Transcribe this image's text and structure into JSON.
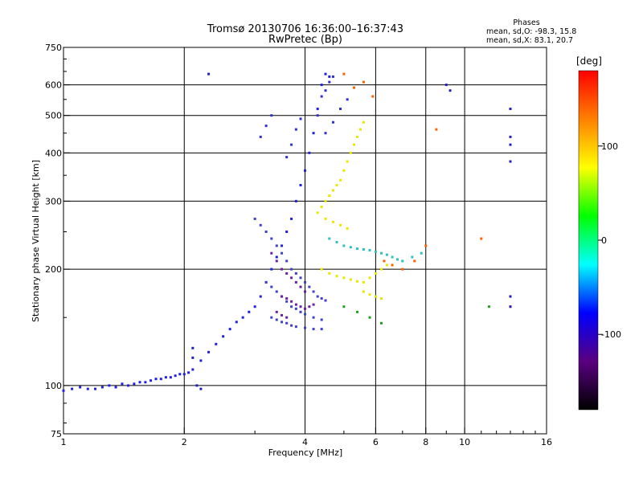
{
  "chart_data": {
    "type": "scatter",
    "title": "Tromsø 20130706 16:36:00–16:37:43",
    "subtitle": "RwPretec (Bp)",
    "xlabel": "Frequency [MHz]",
    "ylabel": "Stationary phase Virtual Height [km]",
    "x_scale": "log",
    "y_scale": "log",
    "xlim": [
      1,
      16
    ],
    "ylim": [
      75,
      750
    ],
    "x_ticks": [
      1,
      2,
      4,
      6,
      8,
      10,
      16
    ],
    "y_ticks": [
      75,
      100,
      200,
      300,
      400,
      500,
      600,
      750
    ],
    "x_grid": [
      2,
      4,
      6,
      8,
      10
    ],
    "y_grid": [
      100,
      200,
      300,
      400,
      500,
      600
    ],
    "grid": true,
    "phase_stats": {
      "heading": "Phases",
      "line_o": "mean, sd,O: -98.3, 15.8",
      "line_x": "mean, sd,X:  83.1, 20.7"
    },
    "colorbar": {
      "unit": "[deg]",
      "range": [
        -180,
        180
      ],
      "ticks": [
        100,
        0,
        -100
      ],
      "tick_labels": [
        "100",
        "0",
        "-100"
      ],
      "colors": [
        "#000000",
        "#5a0080",
        "#0000ff",
        "#00ffff",
        "#00ff00",
        "#ffff00",
        "#ff8000",
        "#ff0000"
      ]
    },
    "series": [
      {
        "color": "#2020e0",
        "note_points": [
          [
            1.0,
            97
          ],
          [
            1.05,
            98
          ],
          [
            1.1,
            99
          ],
          [
            1.15,
            98
          ],
          [
            1.2,
            98
          ],
          [
            1.25,
            99
          ],
          [
            1.3,
            100
          ],
          [
            1.35,
            99
          ],
          [
            1.4,
            101
          ],
          [
            1.45,
            100
          ],
          [
            1.5,
            101
          ],
          [
            1.55,
            102
          ],
          [
            1.6,
            102
          ],
          [
            1.65,
            103
          ],
          [
            1.7,
            104
          ],
          [
            1.75,
            104
          ],
          [
            1.8,
            105
          ],
          [
            1.85,
            105
          ],
          [
            1.9,
            106
          ],
          [
            1.95,
            107
          ],
          [
            2.0,
            107
          ],
          [
            2.05,
            108
          ],
          [
            2.1,
            110
          ],
          [
            2.2,
            116
          ],
          [
            2.3,
            122
          ],
          [
            2.4,
            128
          ],
          [
            2.5,
            134
          ],
          [
            2.6,
            140
          ],
          [
            2.7,
            146
          ],
          [
            2.8,
            150
          ],
          [
            2.9,
            155
          ],
          [
            3.0,
            160
          ],
          [
            3.1,
            170
          ],
          [
            3.2,
            185
          ],
          [
            3.3,
            200
          ],
          [
            3.4,
            215
          ],
          [
            3.5,
            230
          ],
          [
            3.6,
            250
          ],
          [
            3.7,
            270
          ],
          [
            3.8,
            300
          ],
          [
            3.9,
            330
          ],
          [
            4.0,
            360
          ],
          [
            4.1,
            400
          ],
          [
            4.2,
            450
          ],
          [
            4.3,
            520
          ],
          [
            4.4,
            600
          ],
          [
            4.5,
            640
          ],
          [
            4.6,
            630
          ]
        ]
      },
      {
        "color": "#3030d0",
        "note_points": [
          [
            3.6,
            390
          ],
          [
            3.7,
            420
          ],
          [
            3.8,
            460
          ],
          [
            3.9,
            490
          ],
          [
            3.1,
            440
          ],
          [
            3.2,
            470
          ],
          [
            3.3,
            500
          ],
          [
            4.4,
            560
          ],
          [
            4.5,
            580
          ],
          [
            4.6,
            610
          ],
          [
            4.7,
            630
          ],
          [
            4.3,
            500
          ],
          [
            4.5,
            450
          ],
          [
            4.7,
            480
          ],
          [
            4.9,
            520
          ],
          [
            5.1,
            550
          ]
        ]
      },
      {
        "color": "#4040c8",
        "note_points": [
          [
            3.0,
            270
          ],
          [
            3.1,
            260
          ],
          [
            3.2,
            250
          ],
          [
            3.3,
            240
          ],
          [
            3.4,
            230
          ],
          [
            3.5,
            220
          ],
          [
            3.6,
            210
          ],
          [
            3.7,
            200
          ],
          [
            3.8,
            195
          ],
          [
            3.9,
            190
          ],
          [
            4.0,
            185
          ],
          [
            4.1,
            180
          ],
          [
            4.2,
            175
          ],
          [
            4.3,
            170
          ],
          [
            4.4,
            168
          ],
          [
            4.5,
            166
          ],
          [
            3.2,
            185
          ],
          [
            3.3,
            180
          ],
          [
            3.4,
            175
          ],
          [
            3.5,
            170
          ],
          [
            3.6,
            165
          ],
          [
            3.7,
            160
          ],
          [
            3.8,
            158
          ],
          [
            3.9,
            155
          ],
          [
            4.0,
            153
          ],
          [
            4.2,
            150
          ],
          [
            4.4,
            148
          ],
          [
            3.3,
            150
          ],
          [
            3.4,
            148
          ],
          [
            3.5,
            146
          ],
          [
            3.6,
            145
          ],
          [
            3.7,
            143
          ],
          [
            3.8,
            142
          ],
          [
            4.0,
            141
          ],
          [
            4.2,
            140
          ],
          [
            4.4,
            140
          ]
        ]
      },
      {
        "color": "#6a20a0",
        "note_points": [
          [
            3.3,
            220
          ],
          [
            3.4,
            210
          ],
          [
            3.5,
            200
          ],
          [
            3.6,
            195
          ],
          [
            3.7,
            190
          ],
          [
            3.8,
            185
          ],
          [
            3.9,
            180
          ],
          [
            4.0,
            175
          ],
          [
            3.5,
            170
          ],
          [
            3.6,
            168
          ],
          [
            3.7,
            165
          ],
          [
            3.8,
            162
          ],
          [
            3.9,
            160
          ],
          [
            4.0,
            158
          ],
          [
            4.1,
            160
          ],
          [
            4.2,
            162
          ],
          [
            3.4,
            155
          ],
          [
            3.5,
            152
          ],
          [
            3.6,
            150
          ]
        ]
      },
      {
        "color": "#e8e800",
        "note_points": [
          [
            4.3,
            280
          ],
          [
            4.4,
            290
          ],
          [
            4.5,
            300
          ],
          [
            4.6,
            310
          ],
          [
            4.7,
            320
          ],
          [
            4.8,
            330
          ],
          [
            4.9,
            340
          ],
          [
            5.0,
            360
          ],
          [
            5.1,
            380
          ],
          [
            5.2,
            400
          ],
          [
            5.3,
            420
          ],
          [
            5.4,
            440
          ],
          [
            5.5,
            460
          ],
          [
            5.6,
            480
          ],
          [
            4.5,
            270
          ],
          [
            4.7,
            265
          ],
          [
            4.9,
            260
          ],
          [
            5.1,
            255
          ],
          [
            4.4,
            200
          ],
          [
            4.6,
            195
          ],
          [
            4.8,
            192
          ],
          [
            5.0,
            190
          ],
          [
            5.2,
            188
          ],
          [
            5.4,
            186
          ],
          [
            5.6,
            185
          ],
          [
            5.8,
            190
          ],
          [
            6.0,
            195
          ],
          [
            6.2,
            200
          ],
          [
            6.4,
            205
          ],
          [
            5.6,
            175
          ],
          [
            5.8,
            172
          ],
          [
            6.0,
            170
          ],
          [
            6.2,
            168
          ]
        ]
      },
      {
        "color": "#30c0c0",
        "note_points": [
          [
            4.6,
            240
          ],
          [
            4.8,
            235
          ],
          [
            5.0,
            230
          ],
          [
            5.2,
            228
          ],
          [
            5.4,
            226
          ],
          [
            5.6,
            225
          ],
          [
            5.8,
            224
          ],
          [
            6.0,
            222
          ],
          [
            6.2,
            220
          ],
          [
            6.4,
            218
          ],
          [
            6.6,
            215
          ],
          [
            6.8,
            212
          ],
          [
            7.0,
            210
          ],
          [
            7.4,
            215
          ],
          [
            7.8,
            220
          ]
        ]
      },
      {
        "color": "#ff6000",
        "note_points": [
          [
            5.0,
            640
          ],
          [
            5.3,
            590
          ],
          [
            5.6,
            610
          ],
          [
            5.9,
            560
          ],
          [
            6.3,
            210
          ],
          [
            6.6,
            205
          ],
          [
            7.0,
            200
          ],
          [
            7.5,
            210
          ],
          [
            8.0,
            230
          ],
          [
            8.5,
            460
          ],
          [
            11.0,
            240
          ],
          [
            13.0,
            160
          ]
        ]
      },
      {
        "color": "#20a020",
        "note_points": [
          [
            5.8,
            150
          ],
          [
            6.2,
            145
          ],
          [
            5.0,
            160
          ],
          [
            5.4,
            155
          ],
          [
            11.5,
            160
          ]
        ]
      },
      {
        "color": "#2020c0",
        "note_points": [
          [
            9.0,
            600
          ],
          [
            9.2,
            580
          ],
          [
            13.0,
            520
          ],
          [
            13.0,
            440
          ],
          [
            13.0,
            420
          ],
          [
            13.0,
            380
          ],
          [
            13.0,
            170
          ],
          [
            13.0,
            160
          ],
          [
            2.3,
            640
          ],
          [
            2.1,
            125
          ],
          [
            2.1,
            118
          ],
          [
            2.15,
            100
          ],
          [
            2.2,
            98
          ]
        ]
      }
    ]
  }
}
